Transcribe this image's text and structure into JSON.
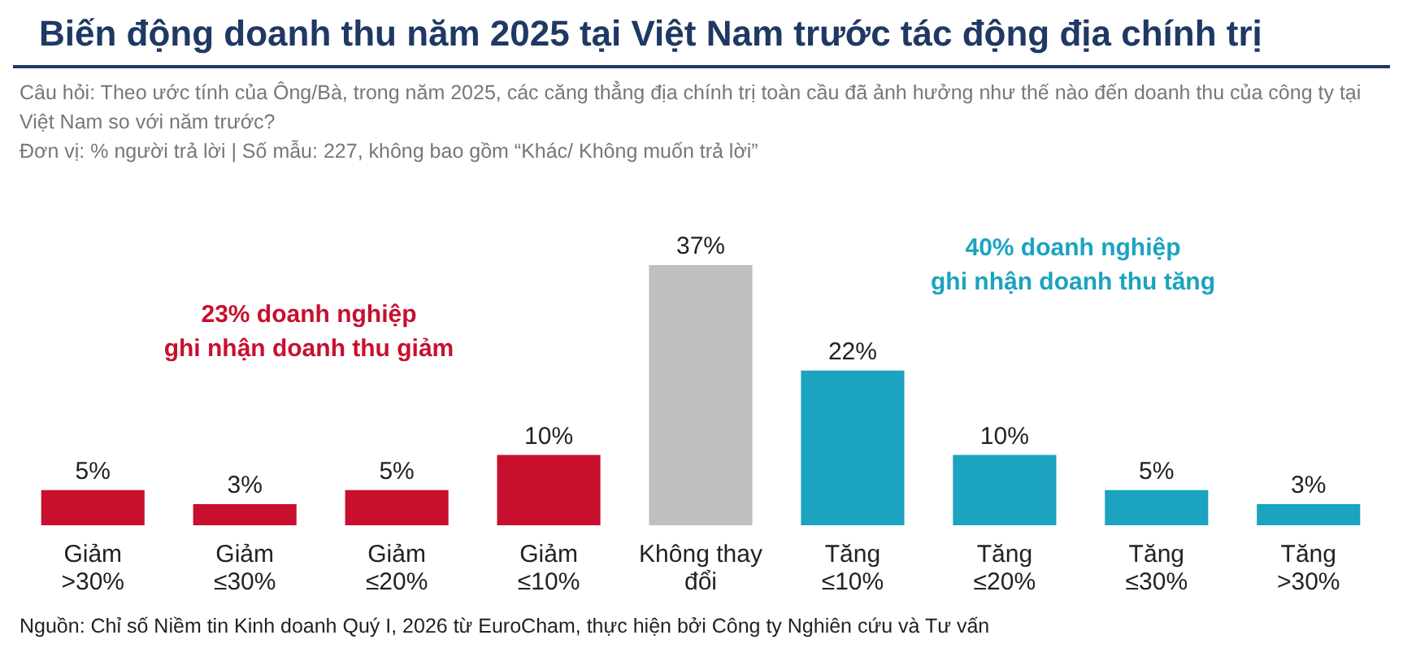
{
  "chart_data": {
    "type": "bar",
    "title": "Biến động doanh thu năm 2025 tại Việt Nam trước tác động địa chính trị",
    "subtitle": "Câu hỏi: Theo ước tính của Ông/Bà, trong năm 2025, các căng thẳng địa chính trị toàn cầu đã ảnh hưởng như thế nào đến doanh thu của công ty tại Việt Nam so với năm trước?\nĐơn vị: % người trả lời | Số mẫu: 227, không bao gồm “Khác/ Không muốn trả lời”",
    "categories": [
      "Giảm\n>30%",
      "Giảm\n≤30%",
      "Giảm\n≤20%",
      "Giảm\n≤10%",
      "Không thay\nđổi",
      "Tăng\n≤10%",
      "Tăng\n≤20%",
      "Tăng\n≤30%",
      "Tăng\n>30%"
    ],
    "values": [
      5,
      3,
      5,
      10,
      37,
      22,
      10,
      5,
      3
    ],
    "value_labels": [
      "5%",
      "3%",
      "5%",
      "10%",
      "37%",
      "22%",
      "10%",
      "5%",
      "3%"
    ],
    "colors": [
      "#c8102e",
      "#c8102e",
      "#c8102e",
      "#c8102e",
      "#bfbfbf",
      "#1ba3bf",
      "#1ba3bf",
      "#1ba3bf",
      "#1ba3bf"
    ],
    "annotations": [
      "23% doanh nghiệp\nghi nhận doanh thu giảm",
      "40% doanh nghiệp\nghi nhận doanh thu tăng",
      "Nguồn: Chỉ số Niềm tin Kinh doanh Quý I, 2026 từ EuroCham, thực hiện bởi Công ty Nghiên cứu và Tư vấn"
    ],
    "grid": false
  }
}
